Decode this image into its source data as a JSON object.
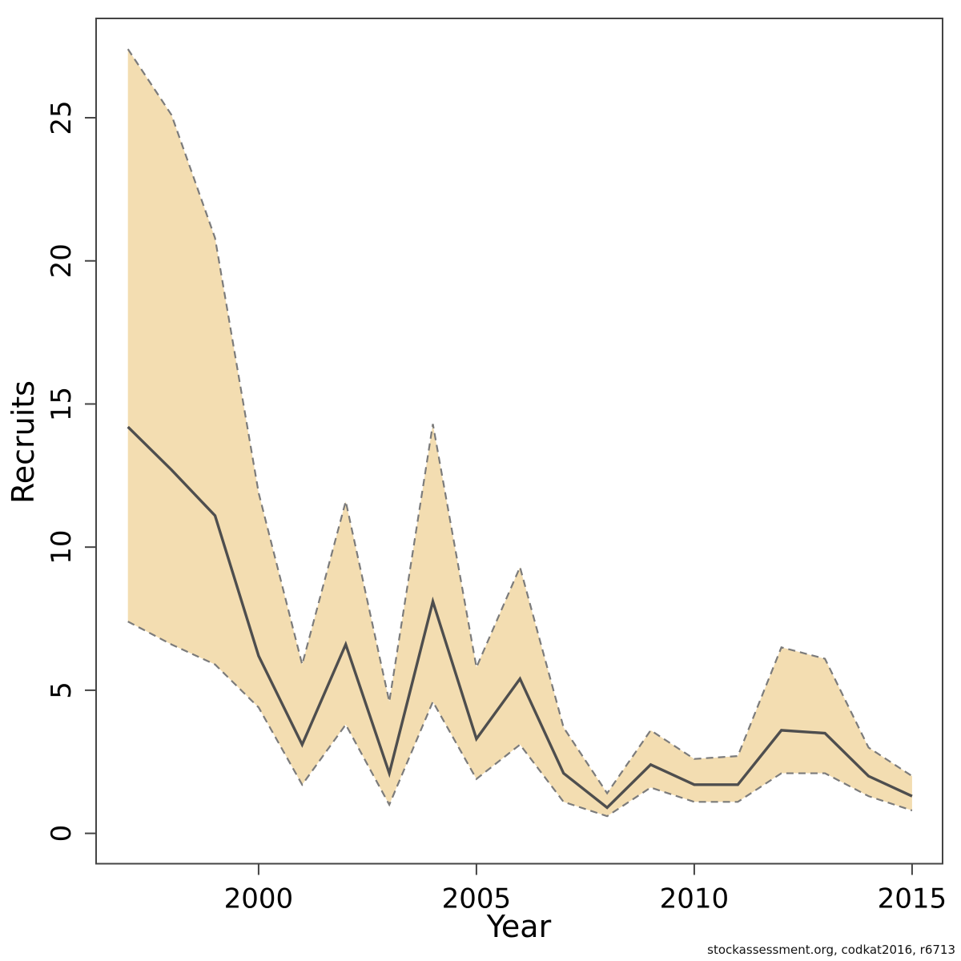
{
  "caption": "stockassessment.org, codkat2016, r6713",
  "axes": {
    "x": {
      "label": "Year",
      "ticks": [
        2000,
        2005,
        2010,
        2015
      ],
      "range": [
        1996.27,
        2015.7
      ]
    },
    "y": {
      "label": "Recruits",
      "ticks": [
        0,
        5,
        10,
        15,
        20,
        25
      ],
      "range": [
        -1.06,
        28.47
      ]
    }
  },
  "colors": {
    "band_fill": "#f3ddb1",
    "band_edge": "#7b7b7b",
    "median_line": "#4e4e4e",
    "axis": "#444444",
    "text": "#000000"
  },
  "chart_data": {
    "type": "line",
    "title": "",
    "xlabel": "Year",
    "ylabel": "Recruits",
    "x": [
      1997,
      1998,
      1999,
      2000,
      2001,
      2002,
      2003,
      2004,
      2005,
      2006,
      2007,
      2008,
      2009,
      2010,
      2011,
      2012,
      2013,
      2014,
      2015
    ],
    "series": [
      {
        "name": "recruits-median",
        "values": [
          14.2,
          12.7,
          11.1,
          6.2,
          3.1,
          6.6,
          2.1,
          8.1,
          3.3,
          5.4,
          2.1,
          0.9,
          2.4,
          1.7,
          1.7,
          3.6,
          3.5,
          2.0,
          1.3
        ]
      }
    ],
    "band": {
      "name": "confidence-interval",
      "lower": [
        7.4,
        6.6,
        5.9,
        4.4,
        1.7,
        3.8,
        1.0,
        4.6,
        1.9,
        3.1,
        1.1,
        0.6,
        1.6,
        1.1,
        1.1,
        2.1,
        2.1,
        1.3,
        0.8
      ],
      "upper": [
        27.4,
        25.1,
        20.8,
        11.9,
        5.9,
        11.6,
        4.6,
        14.3,
        5.8,
        9.3,
        3.7,
        1.4,
        3.6,
        2.6,
        2.7,
        6.5,
        6.1,
        3.0,
        2.0
      ]
    },
    "xlim": [
      1996.27,
      2015.7
    ],
    "ylim": [
      -1.06,
      28.47
    ],
    "grid": false,
    "legend": "none"
  }
}
